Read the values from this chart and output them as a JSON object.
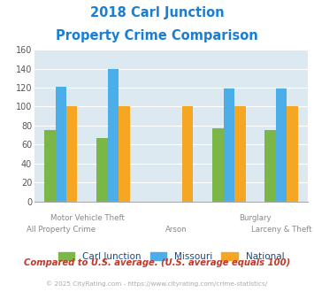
{
  "title_line1": "2018 Carl Junction",
  "title_line2": "Property Crime Comparison",
  "title_color": "#1a7fd4",
  "categories": [
    "All Property Crime",
    "Motor Vehicle Theft",
    "Arson",
    "Burglary",
    "Larceny & Theft"
  ],
  "series": {
    "Carl Junction": [
      75,
      67,
      null,
      77,
      75
    ],
    "Missouri": [
      121,
      140,
      null,
      119,
      119
    ],
    "National": [
      100,
      100,
      100,
      100,
      100
    ]
  },
  "colors": {
    "Carl Junction": "#7ab648",
    "Missouri": "#4baee8",
    "National": "#f5a623"
  },
  "ylim": [
    0,
    160
  ],
  "yticks": [
    0,
    20,
    40,
    60,
    80,
    100,
    120,
    140,
    160
  ],
  "plot_bg_color": "#dce9f0",
  "footer_text": "Compared to U.S. average. (U.S. average equals 100)",
  "footer_color": "#c0392b",
  "copyright_text": "© 2025 CityRating.com - https://www.cityrating.com/crime-statistics/",
  "copyright_color": "#aaaaaa",
  "legend_labels": [
    "Carl Junction",
    "Missouri",
    "National"
  ],
  "legend_text_color": "#1a4a7a",
  "bar_width": 0.21,
  "group_positions": [
    0.5,
    1.5,
    2.7,
    3.7,
    4.7
  ],
  "upper_labels": [
    [
      1.0,
      "Motor Vehicle Theft"
    ],
    [
      4.2,
      "Burglary"
    ]
  ],
  "lower_labels": [
    [
      0.5,
      "All Property Crime"
    ],
    [
      2.7,
      "Arson"
    ],
    [
      4.7,
      "Larceny & Theft"
    ]
  ]
}
